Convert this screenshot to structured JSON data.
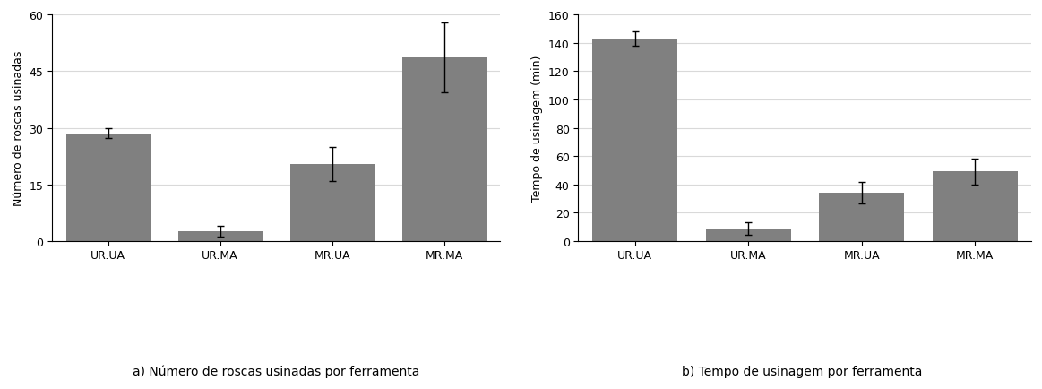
{
  "chart_data": [
    {
      "type": "bar",
      "title": "a) Número de roscas usinadas por ferramenta",
      "y_label": "Número de roscas usinadas",
      "categories": [
        "UR.UA",
        "UR.MA",
        "MR.UA",
        "MR.MA"
      ],
      "values": [
        28.5,
        2.5,
        20.3,
        48.7
      ],
      "errors": [
        1.3,
        1.5,
        4.5,
        9.2
      ],
      "color": "#808080",
      "ylim": [
        0,
        60
      ],
      "yticks": [
        0,
        15,
        30,
        45,
        60
      ],
      "grid": true
    },
    {
      "type": "bar",
      "title": "b) Tempo de usinagem por ferramenta",
      "y_label": "Tempo de usinagem (min)",
      "categories": [
        "UR.UA",
        "UR.MA",
        "MR.UA",
        "MR.MA"
      ],
      "values": [
        143,
        8.5,
        34,
        49
      ],
      "errors": [
        5,
        4.5,
        7.5,
        9
      ],
      "color": "#808080",
      "ylim": [
        0,
        160
      ],
      "yticks": [
        0,
        20,
        40,
        60,
        80,
        100,
        120,
        140,
        160
      ],
      "grid": true
    }
  ]
}
